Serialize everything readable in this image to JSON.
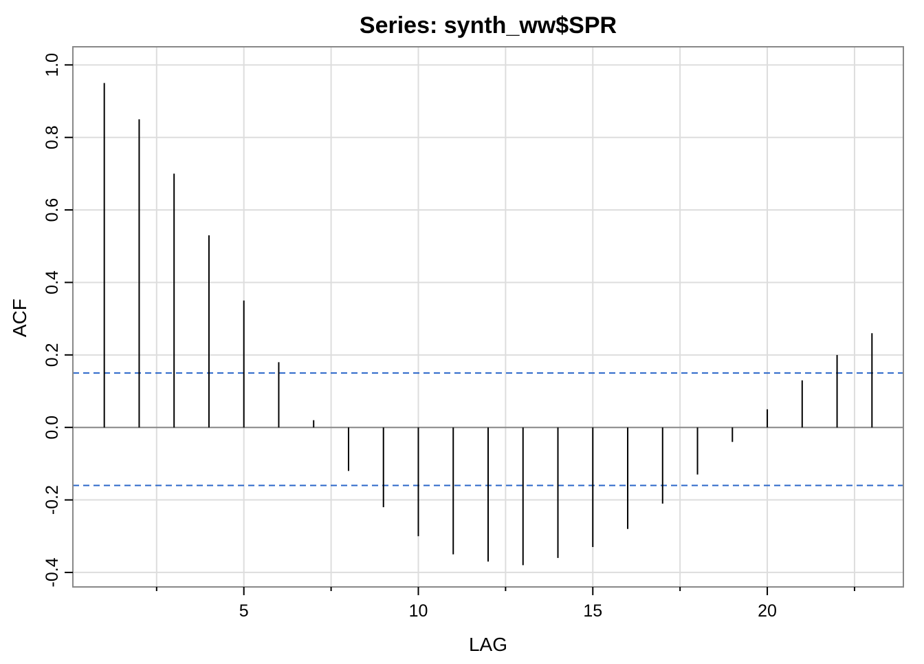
{
  "chart_data": {
    "type": "bar",
    "subtype": "acf-spikes",
    "title": "Series:  synth_ww$SPR",
    "xlabel": "LAG",
    "ylabel": "ACF",
    "xlim": [
      0.1,
      23.9
    ],
    "ylim": [
      -0.44,
      1.05
    ],
    "x_ticks": [
      5,
      10,
      15,
      20
    ],
    "x_minor_ticks": [
      2.5,
      7.5,
      12.5,
      17.5,
      22.5
    ],
    "y_ticks": [
      -0.4,
      -0.2,
      0.0,
      0.2,
      0.4,
      0.6,
      0.8,
      1.0
    ],
    "y_tick_labels": [
      "-0.4",
      "-0.2",
      "0.0",
      "0.2",
      "0.4",
      "0.6",
      "0.8",
      "1.0"
    ],
    "x_grid": [
      2.5,
      5,
      7.5,
      10,
      12.5,
      15,
      17.5,
      20,
      22.5
    ],
    "grid": true,
    "zero_line": 0.0,
    "confidence_bounds": [
      0.15,
      -0.16
    ],
    "lags": [
      1,
      2,
      3,
      4,
      5,
      6,
      7,
      8,
      9,
      10,
      11,
      12,
      13,
      14,
      15,
      16,
      17,
      18,
      19,
      20,
      21,
      22,
      23
    ],
    "values": [
      0.95,
      0.85,
      0.7,
      0.53,
      0.35,
      0.18,
      0.02,
      -0.12,
      -0.22,
      -0.3,
      -0.35,
      -0.37,
      -0.38,
      -0.36,
      -0.33,
      -0.28,
      -0.21,
      -0.13,
      -0.04,
      0.05,
      0.13,
      0.2,
      0.26
    ],
    "colors": {
      "spike": "#000000",
      "confidence": "#2a66c9",
      "grid": "#dddddd",
      "zero_line": "#888888",
      "frame": "#888888"
    }
  }
}
